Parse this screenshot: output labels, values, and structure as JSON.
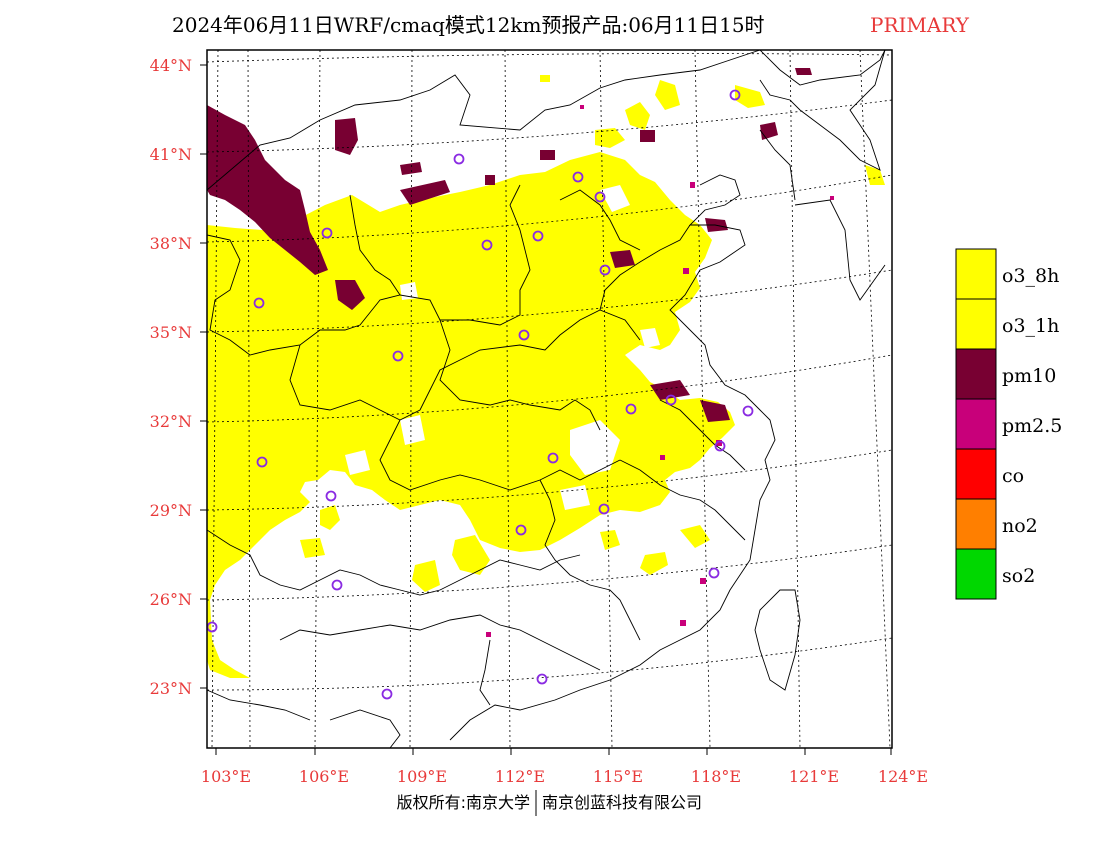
{
  "header": {
    "title": "2024年06月11日WRF/cmaq模式12km预报产品:06月11日15时",
    "tag": "PRIMARY"
  },
  "footer": {
    "left": "版权所有:南京大学",
    "right": "南京创蓝科技有限公司"
  },
  "axes": {
    "lat_labels": [
      "44°N",
      "41°N",
      "38°N",
      "35°N",
      "32°N",
      "29°N",
      "26°N",
      "23°N"
    ],
    "lon_labels": [
      "103°E",
      "106°E",
      "109°E",
      "112°E",
      "115°E",
      "118°E",
      "121°E",
      "124°E"
    ],
    "label_color": "#e83a3a"
  },
  "legend": [
    {
      "label": "o3_8h",
      "color": "#ffff00"
    },
    {
      "label": "o3_1h",
      "color": "#ffff00"
    },
    {
      "label": "pm10",
      "color": "#780032"
    },
    {
      "label": "pm2.5",
      "color": "#c8007a"
    },
    {
      "label": "co",
      "color": "#ff0000"
    },
    {
      "label": "no2",
      "color": "#ff7f00"
    },
    {
      "label": "so2",
      "color": "#00d700"
    }
  ],
  "colors": {
    "o3": "#ffff00",
    "pm10": "#780032",
    "pm25": "#c8007a",
    "station": "#8a2be2"
  }
}
